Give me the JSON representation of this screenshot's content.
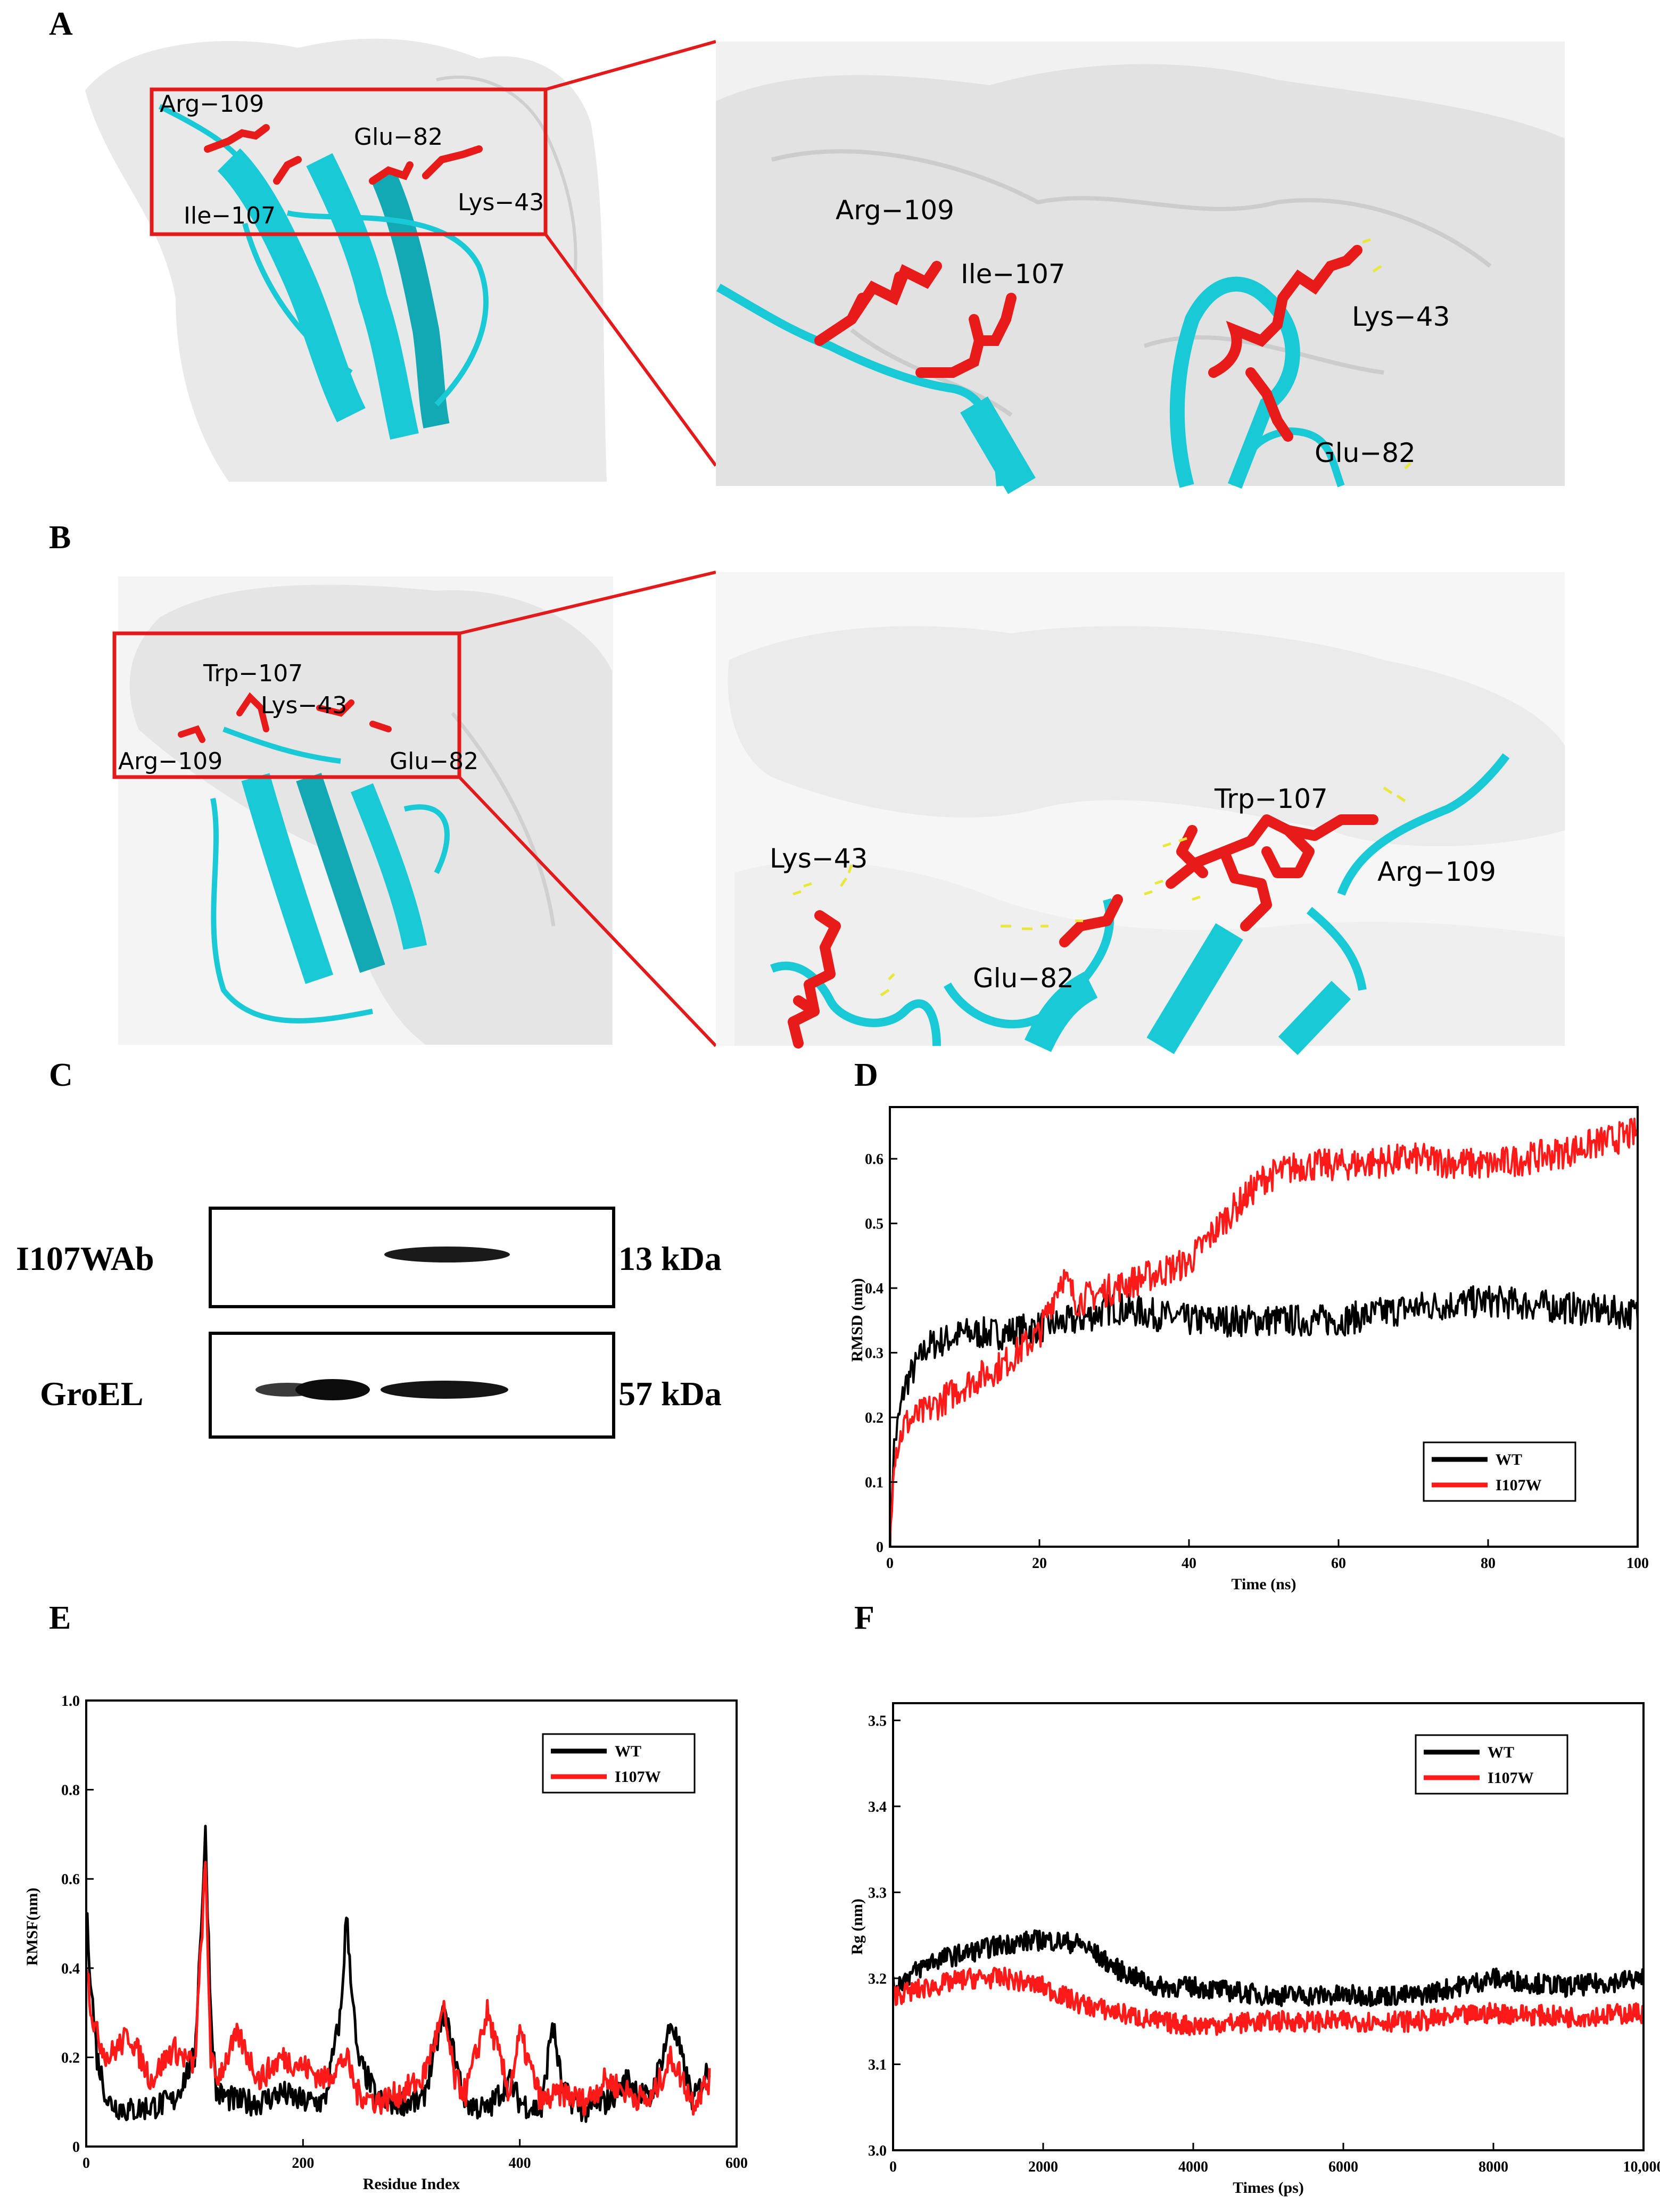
{
  "panels": {
    "a": {
      "letter": "A",
      "labels_overview": [
        "Arg−109",
        "Glu−82",
        "Ile−107",
        "Lys−43"
      ],
      "labels_zoom": [
        "Arg−109",
        "Ile−107",
        "Lys−43",
        "Glu−82"
      ]
    },
    "b": {
      "letter": "B",
      "labels_overview": [
        "Trp−107",
        "Lys−43",
        "Arg−109",
        "Glu−82"
      ],
      "labels_zoom": [
        "Trp−107",
        "Lys−43",
        "Arg−109",
        "Glu−82"
      ]
    },
    "c": {
      "letter": "C",
      "rows": [
        {
          "name": "I107WAb",
          "size": "13 kDa"
        },
        {
          "name": "GroEL",
          "size": "57 kDa"
        }
      ]
    },
    "d": {
      "letter": "D"
    },
    "e": {
      "letter": "E"
    },
    "f": {
      "letter": "F"
    }
  },
  "colors": {
    "protein_surface": "#e9e9e9",
    "cartoon": "#19c9d6",
    "residue": "#e81b1b",
    "hbond": "#e8e83a",
    "box": "#e31a1c",
    "wt": "#000000",
    "mutant": "#ff1a1a"
  },
  "chart_data": [
    {
      "id": "D",
      "type": "line",
      "xlabel": "Time (ns)",
      "ylabel": "RMSD (nm)",
      "xlim": [
        0,
        100
      ],
      "ylim": [
        0,
        0.68
      ],
      "xticks": [
        "0",
        "20",
        "40",
        "60",
        "80",
        "100"
      ],
      "yticks": [
        "0",
        "0.1",
        "0.2",
        "0.3",
        "0.4",
        "0.5",
        "0.6"
      ],
      "legend_position": "bottom-right",
      "series": [
        {
          "name": "WT",
          "color": "#000000",
          "x": [
            0,
            0.5,
            2,
            5,
            10,
            15,
            20,
            25,
            30,
            35,
            40,
            50,
            60,
            70,
            80,
            90,
            100
          ],
          "y": [
            0,
            0.15,
            0.25,
            0.31,
            0.33,
            0.33,
            0.34,
            0.35,
            0.37,
            0.36,
            0.35,
            0.35,
            0.35,
            0.37,
            0.38,
            0.37,
            0.36
          ]
        },
        {
          "name": "I107W",
          "color": "#ff1a1a",
          "x": [
            0,
            0.5,
            2,
            5,
            10,
            15,
            20,
            23,
            25,
            30,
            35,
            40,
            45,
            50,
            55,
            60,
            70,
            80,
            90,
            100
          ],
          "y": [
            0,
            0.14,
            0.19,
            0.21,
            0.25,
            0.28,
            0.33,
            0.42,
            0.38,
            0.4,
            0.42,
            0.44,
            0.51,
            0.57,
            0.59,
            0.59,
            0.6,
            0.59,
            0.61,
            0.64
          ]
        }
      ]
    },
    {
      "id": "E",
      "type": "line",
      "xlabel": "Residue Index",
      "ylabel": "RMSF(nm)",
      "xlim": [
        0,
        600
      ],
      "ylim": [
        0,
        1.0
      ],
      "xticks": [
        "0",
        "200",
        "400",
        "600"
      ],
      "yticks": [
        "0",
        "0.2",
        "0.4",
        "0.6",
        "0.8",
        "1.0"
      ],
      "legend_position": "top-right",
      "series": [
        {
          "name": "WT",
          "color": "#000000",
          "x": [
            0,
            5,
            10,
            20,
            40,
            60,
            80,
            100,
            110,
            115,
            120,
            140,
            160,
            180,
            200,
            220,
            235,
            240,
            250,
            270,
            290,
            310,
            330,
            340,
            350,
            370,
            390,
            400,
            420,
            430,
            440,
            460,
            480,
            500,
            520,
            540,
            560,
            575
          ],
          "y": [
            0.53,
            0.35,
            0.2,
            0.1,
            0.08,
            0.09,
            0.1,
            0.2,
            0.7,
            0.3,
            0.12,
            0.1,
            0.1,
            0.12,
            0.1,
            0.1,
            0.3,
            0.52,
            0.2,
            0.1,
            0.1,
            0.1,
            0.3,
            0.2,
            0.1,
            0.08,
            0.15,
            0.1,
            0.08,
            0.28,
            0.12,
            0.08,
            0.1,
            0.15,
            0.1,
            0.28,
            0.1,
            0.18
          ]
        },
        {
          "name": "I107W",
          "color": "#ff1a1a",
          "x": [
            0,
            5,
            10,
            20,
            40,
            60,
            80,
            100,
            110,
            115,
            120,
            140,
            160,
            180,
            200,
            220,
            240,
            250,
            270,
            290,
            310,
            330,
            340,
            350,
            370,
            390,
            400,
            420,
            440,
            460,
            480,
            500,
            520,
            540,
            560,
            575
          ],
          "y": [
            0.42,
            0.3,
            0.25,
            0.2,
            0.25,
            0.15,
            0.22,
            0.18,
            0.63,
            0.2,
            0.15,
            0.25,
            0.15,
            0.2,
            0.18,
            0.15,
            0.2,
            0.12,
            0.1,
            0.12,
            0.15,
            0.3,
            0.15,
            0.12,
            0.3,
            0.12,
            0.25,
            0.1,
            0.12,
            0.1,
            0.15,
            0.12,
            0.1,
            0.2,
            0.1,
            0.15
          ]
        }
      ]
    },
    {
      "id": "F",
      "type": "line",
      "xlabel": "Times (ps)",
      "ylabel": "Rg (nm)",
      "xlim": [
        0,
        10000
      ],
      "ylim": [
        3.0,
        3.52
      ],
      "xticks": [
        "0",
        "2000",
        "4000",
        "6000",
        "8000",
        "10,000"
      ],
      "yticks": [
        "3.0",
        "3.1",
        "3.2",
        "3.3",
        "3.4",
        "3.5"
      ],
      "legend_position": "top-right",
      "series": [
        {
          "name": "WT",
          "color": "#000000",
          "x": [
            0,
            500,
            1000,
            1500,
            2000,
            2500,
            3000,
            3500,
            4000,
            5000,
            6000,
            7000,
            8000,
            9000,
            10000
          ],
          "y": [
            3.19,
            3.22,
            3.23,
            3.24,
            3.245,
            3.24,
            3.21,
            3.19,
            3.19,
            3.18,
            3.18,
            3.18,
            3.2,
            3.19,
            3.2
          ]
        },
        {
          "name": "I107W",
          "color": "#ff1a1a",
          "x": [
            0,
            500,
            1000,
            1500,
            2000,
            2500,
            3000,
            3500,
            4000,
            5000,
            6000,
            7000,
            8000,
            9000,
            10000
          ],
          "y": [
            3.18,
            3.19,
            3.2,
            3.2,
            3.19,
            3.17,
            3.16,
            3.15,
            3.145,
            3.15,
            3.15,
            3.15,
            3.16,
            3.155,
            3.16
          ]
        }
      ]
    }
  ]
}
